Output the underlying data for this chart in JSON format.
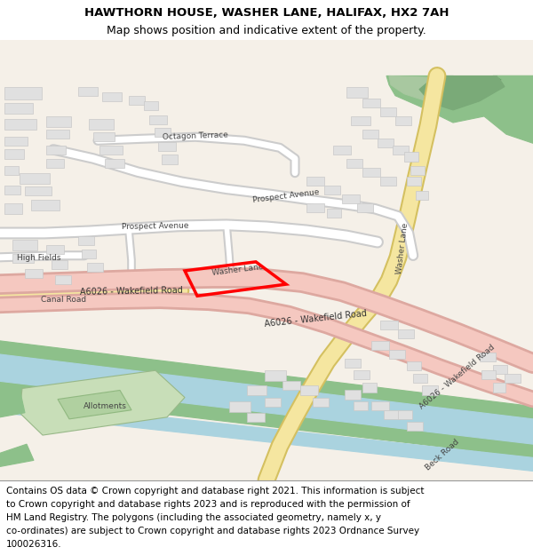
{
  "title_line1": "HAWTHORN HOUSE, WASHER LANE, HALIFAX, HX2 7AH",
  "title_line2": "Map shows position and indicative extent of the property.",
  "footer_lines": [
    "Contains OS data © Crown copyright and database right 2021. This information is subject",
    "to Crown copyright and database rights 2023 and is reproduced with the permission of",
    "HM Land Registry. The polygons (including the associated geometry, namely x, y",
    "co-ordinates) are subject to Crown copyright and database rights 2023 Ordnance Survey",
    "100026316."
  ],
  "map_bg": "#f5f0e8",
  "building_color": "#e0e0e0",
  "building_edge": "#c8c8c8",
  "road_major_color": "#f5c8c0",
  "road_major_edge": "#dda8a0",
  "road_yellow_color": "#f5e6a0",
  "road_yellow_edge": "#d4c060",
  "road_white_color": "#ffffff",
  "road_white_edge": "#cccccc",
  "water_color": "#aad3df",
  "green_dark": "#8dc08a",
  "green_med": "#a8c8a0",
  "green_light": "#c8deb8",
  "plot_color": "#ff0000",
  "title_fontsize": 9.5,
  "footer_fontsize": 7.5,
  "label_fontsize": 7.0,
  "small_fontsize": 6.5
}
